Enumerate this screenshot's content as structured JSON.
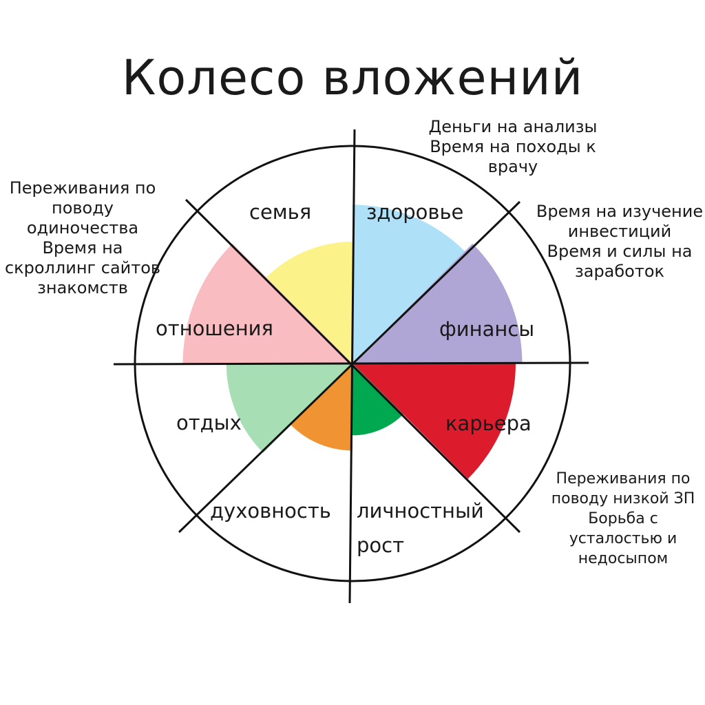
{
  "title": "Колесо вложений",
  "chart_data": {
    "type": "pie",
    "scale_max": 10,
    "segments": [
      {
        "label": "здоровье",
        "value": 7.3,
        "color": "#aee0f7"
      },
      {
        "label": "финансы",
        "value": 7.8,
        "color": "#b0a6d6"
      },
      {
        "label": "карьера",
        "value": 7.5,
        "color": "#dc1c2c"
      },
      {
        "label": "личностный рост",
        "value": 3.3,
        "color": "#00a84f"
      },
      {
        "label": "духовность",
        "value": 4.0,
        "color": "#f09433"
      },
      {
        "label": "отдых",
        "value": 5.8,
        "color": "#a8deb4"
      },
      {
        "label": "отношения",
        "value": 7.8,
        "color": "#f9bcc0"
      },
      {
        "label": "семья",
        "value": 5.6,
        "color": "#fcf28a"
      }
    ]
  },
  "notes": {
    "health": "Деньги на анализы\nВремя на походы к\nврачу",
    "finance": "Время на изучение\nинвестиций\nВремя и силы на\nзаработок",
    "relationships": "Переживания по\nповоду\nодиночества\nВремя на\nскроллинг сайтов\nзнакомств",
    "career": "Переживания по\nповоду низкой ЗП\nБорьба с\nусталостью и\nнедосыпом"
  }
}
